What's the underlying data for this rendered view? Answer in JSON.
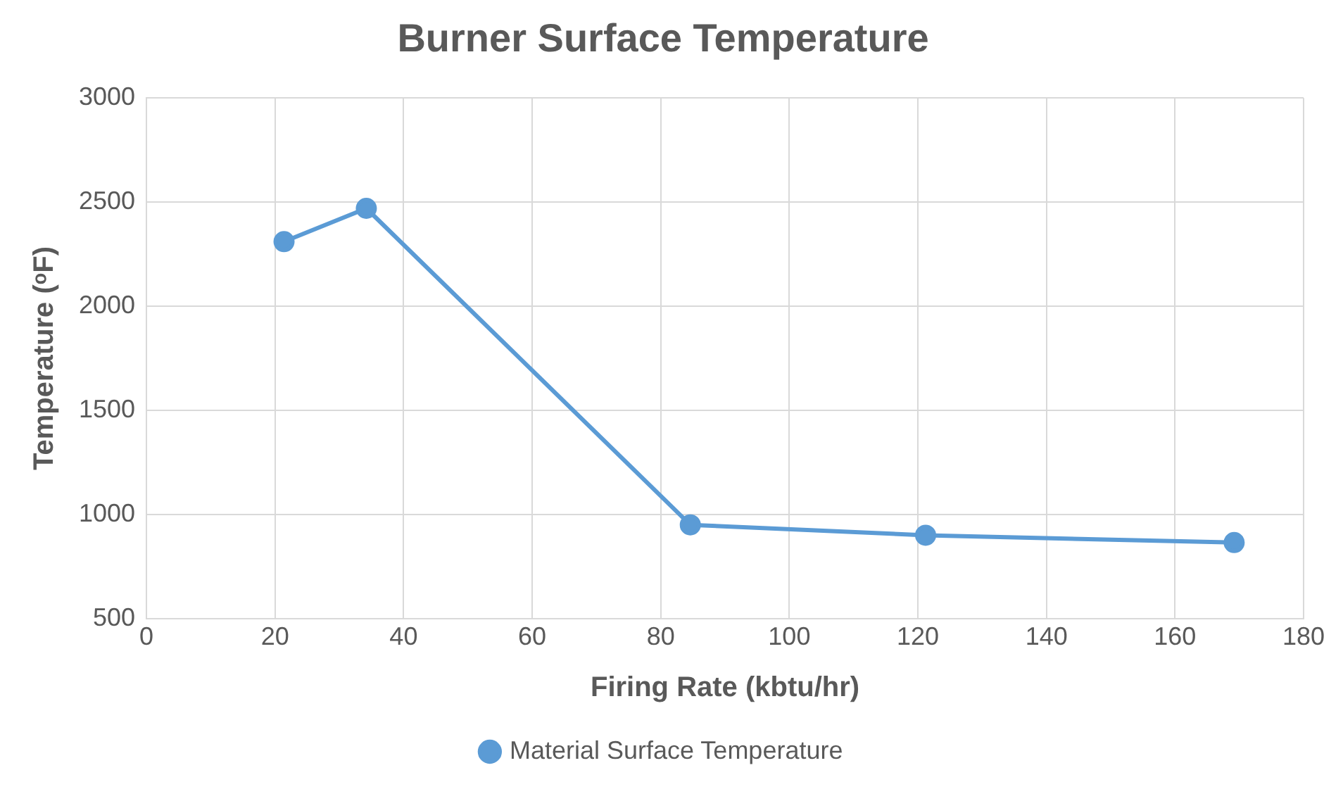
{
  "chart_data": {
    "type": "line",
    "title": "Burner Surface Temperature",
    "xlabel": "Firing Rate (kbtu/hr)",
    "ylabel": "Temperature (ᵒF)",
    "x": [
      21.4,
      34.2,
      84.6,
      121.2,
      169.2
    ],
    "series": [
      {
        "name": "Material Surface Temperature",
        "color": "#5b9bd5",
        "values": [
          2310,
          2470,
          950,
          900,
          865
        ]
      }
    ],
    "xlim": [
      0,
      180
    ],
    "xticks": [
      0,
      20,
      40,
      60,
      80,
      100,
      120,
      140,
      160,
      180
    ],
    "ylim": [
      500,
      3000
    ],
    "yticks": [
      500,
      1000,
      1500,
      2000,
      2500,
      3000
    ],
    "grid": true,
    "legend": "bottom",
    "marker": "circle",
    "line_style": "solid"
  }
}
